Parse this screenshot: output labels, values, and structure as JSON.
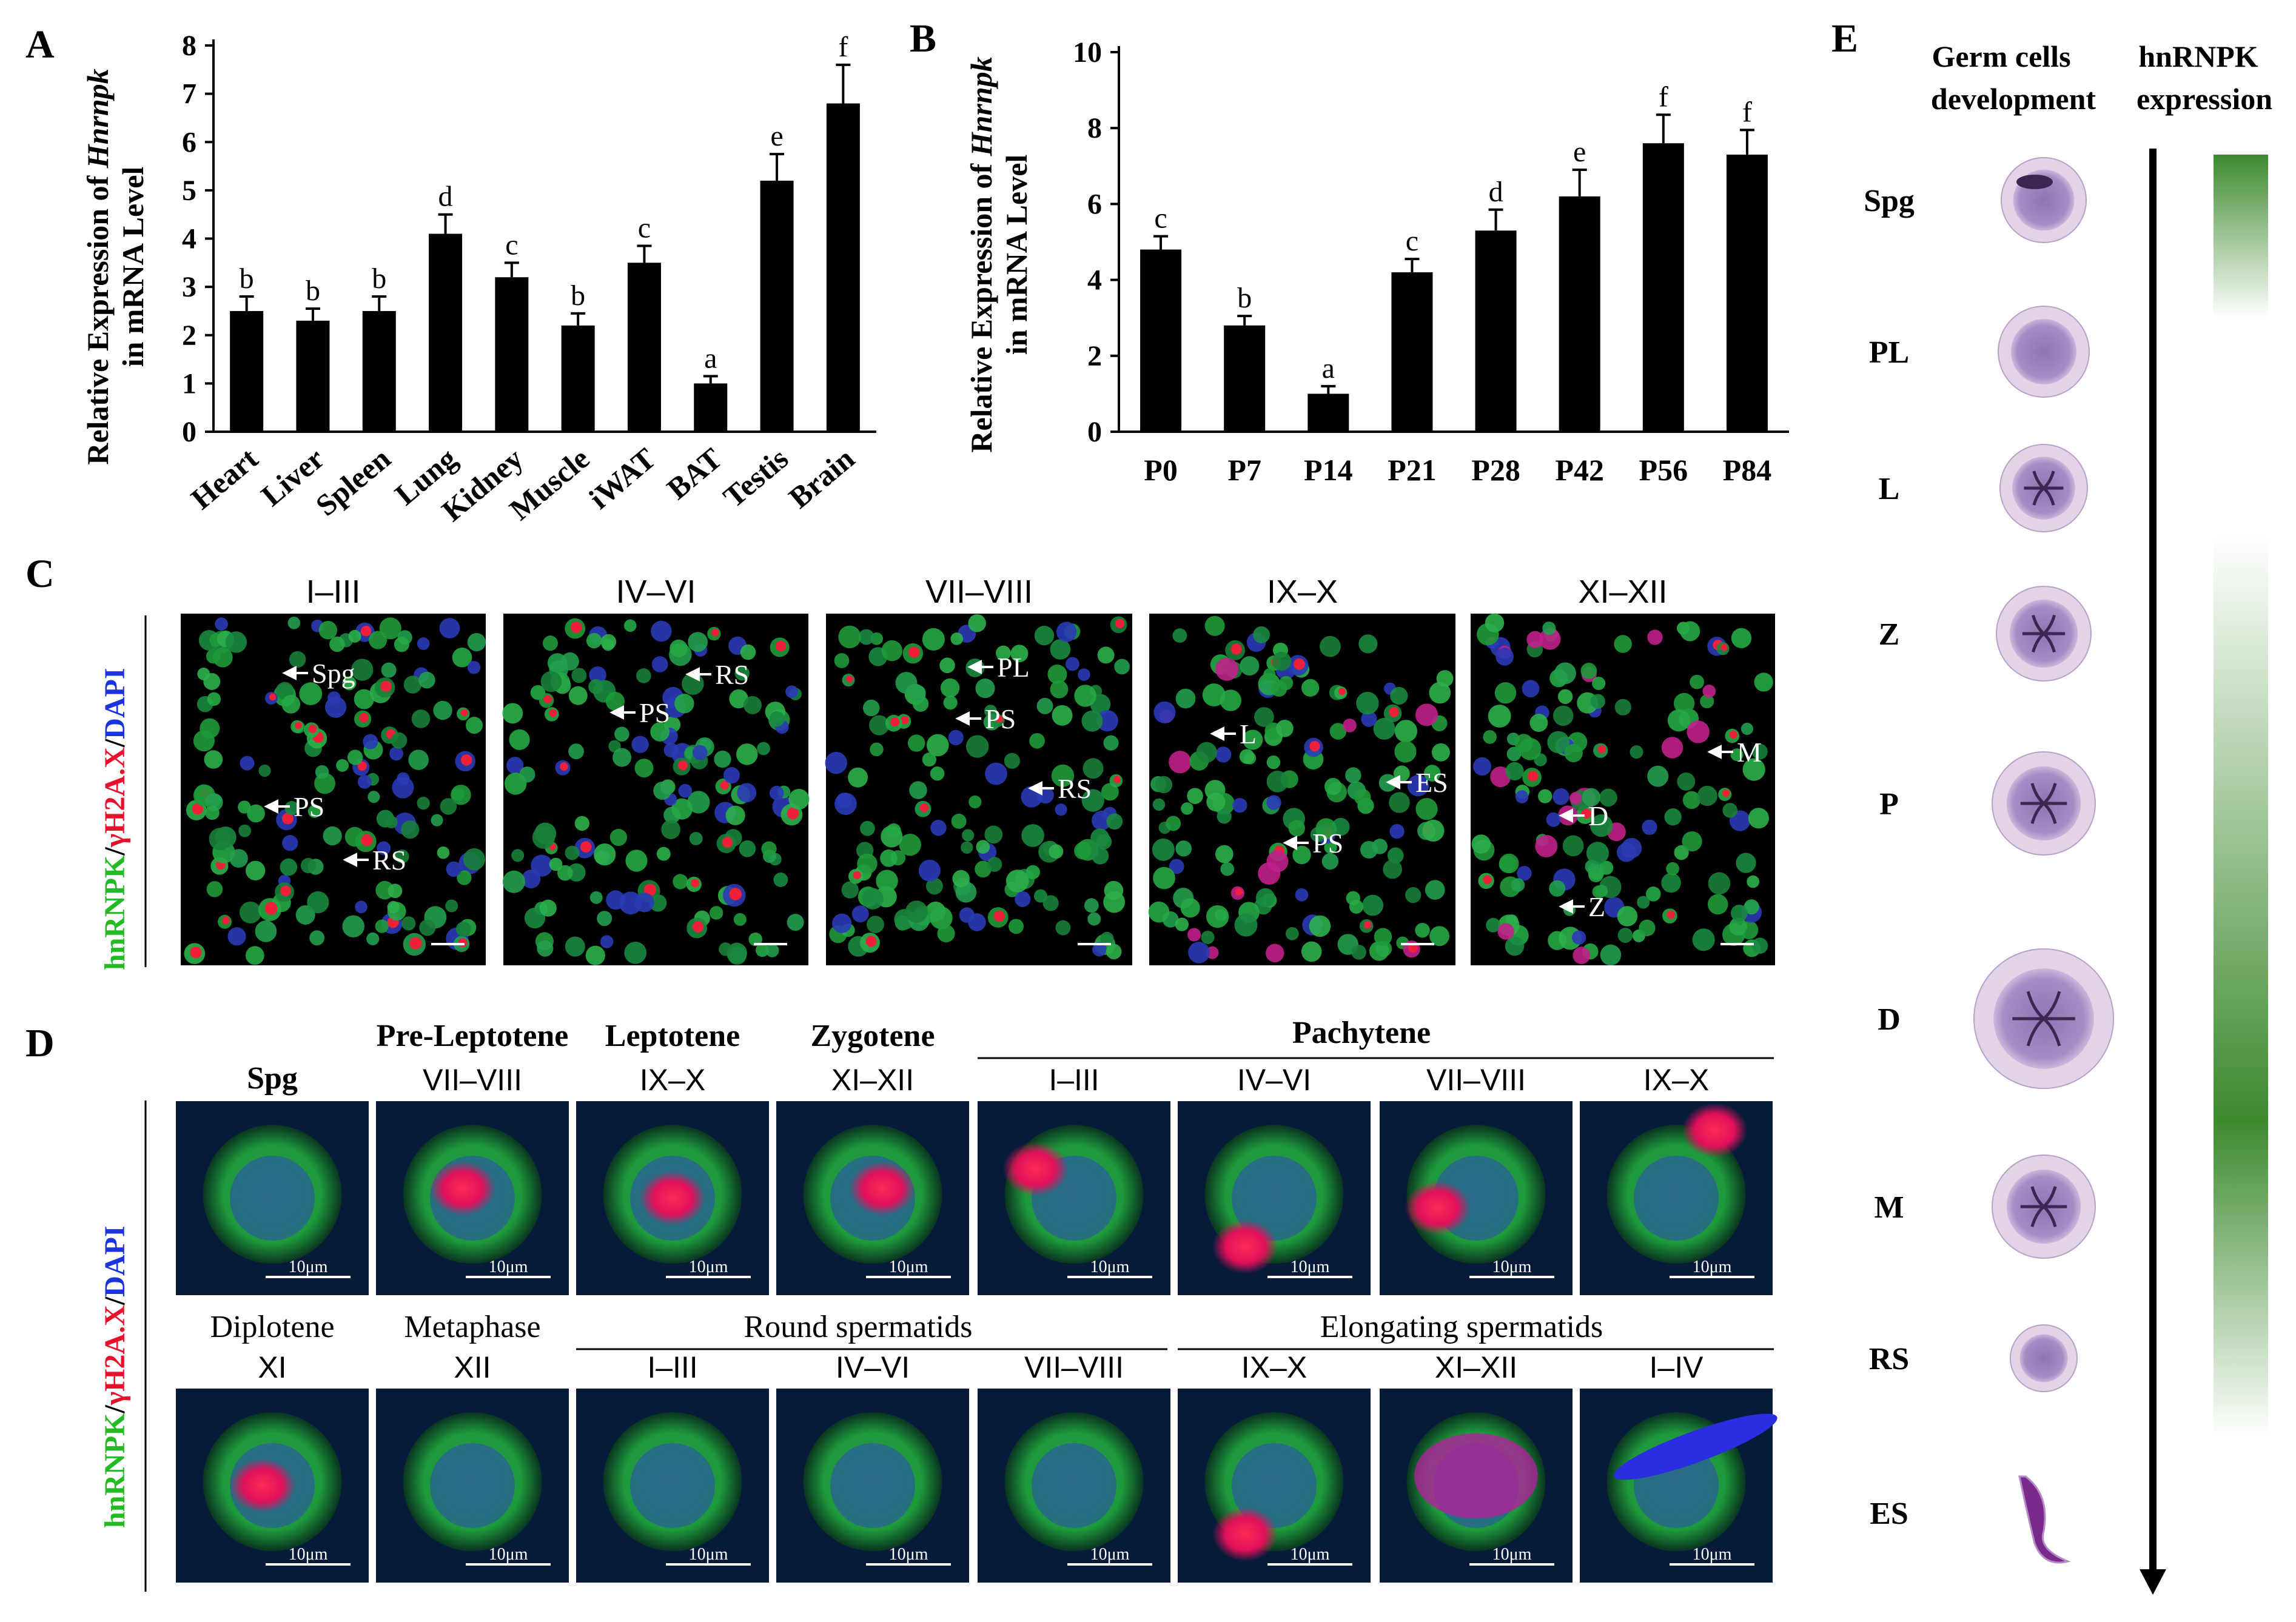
{
  "panels": {
    "A": "A",
    "B": "B",
    "C": "C",
    "D": "D",
    "E": "E"
  },
  "chart_data": [
    {
      "type": "bar",
      "panel": "A",
      "ylabel_prefix": "Relative Expression of ",
      "ylabel_gene": "Hnrnpk",
      "ylabel_line2": "in mRNA Level",
      "categories": [
        "Heart",
        "Liver",
        "Spleen",
        "Lung",
        "Kidney",
        "Muscle",
        "iWAT",
        "BAT",
        "Testis",
        "Brain"
      ],
      "values": [
        2.5,
        2.3,
        2.5,
        4.1,
        3.2,
        2.2,
        3.5,
        1.0,
        5.2,
        6.8
      ],
      "errors": [
        0.3,
        0.25,
        0.3,
        0.4,
        0.3,
        0.25,
        0.35,
        0.15,
        0.55,
        0.8
      ],
      "letters": [
        "b",
        "b",
        "b",
        "d",
        "c",
        "b",
        "c",
        "a",
        "e",
        "f"
      ],
      "ylim": [
        0,
        8
      ],
      "yticks": [
        "0",
        "1",
        "2",
        "3",
        "4",
        "5",
        "6",
        "7",
        "8"
      ]
    },
    {
      "type": "bar",
      "panel": "B",
      "ylabel_prefix": "Relative Expression of ",
      "ylabel_gene": "Hnrnpk",
      "ylabel_line2": "in mRNA Level",
      "categories": [
        "P0",
        "P7",
        "P14",
        "P21",
        "P28",
        "P42",
        "P56",
        "P84"
      ],
      "values": [
        4.8,
        2.8,
        1.0,
        4.2,
        5.3,
        6.2,
        7.6,
        7.3
      ],
      "errors": [
        0.35,
        0.25,
        0.2,
        0.35,
        0.55,
        0.7,
        0.75,
        0.65
      ],
      "letters": [
        "c",
        "b",
        "a",
        "c",
        "d",
        "e",
        "f",
        "f"
      ],
      "ylim": [
        0,
        10
      ],
      "yticks": [
        "0",
        "2",
        "4",
        "6",
        "8",
        "10"
      ]
    }
  ],
  "stain": {
    "p1": "hnRNPK",
    "p2": "/",
    "p3": "γH2A.X",
    "p4": "/",
    "p5": "DAPI",
    "green": "#22bb22",
    "red": "#e8102a",
    "blue": "#1a33dd"
  },
  "panelC": {
    "stages": [
      "I–III",
      "IV–VI",
      "VII–VIII",
      "IX–X",
      "XI–XII"
    ],
    "labels": [
      [
        "Spg",
        "PS",
        "RS"
      ],
      [
        "RS",
        "PS"
      ],
      [
        "PL",
        "PS",
        "RS"
      ],
      [
        "L",
        "ES",
        "PS"
      ],
      [
        "M",
        "D",
        "Z"
      ]
    ]
  },
  "panelD": {
    "row1_headers": [
      "Spg",
      "Pre-Leptotene",
      "Leptotene",
      "Zygotene",
      "Pachytene"
    ],
    "row1_stages": [
      "",
      "VII–VIII",
      "IX–X",
      "XI–XII",
      "I–III",
      "IV–VI",
      "VII–VIII",
      "IX–X"
    ],
    "row2_headers": [
      "Diplotene",
      "Metaphase",
      "Round spermatids",
      "Elongating spermatids"
    ],
    "row2_stages": [
      "XI",
      "XII",
      "I–III",
      "IV–VI",
      "VII–VIII",
      "IX–X",
      "XI–XII",
      "I–IV"
    ],
    "scalebar": "10μm"
  },
  "panelE": {
    "head1a": "Germ cells",
    "head1b": "development",
    "head2a": "hnRNPK",
    "head2b": "expression",
    "stages": [
      "Spg",
      "PL",
      "L",
      "Z",
      "P",
      "D",
      "M",
      "RS",
      "ES"
    ]
  }
}
